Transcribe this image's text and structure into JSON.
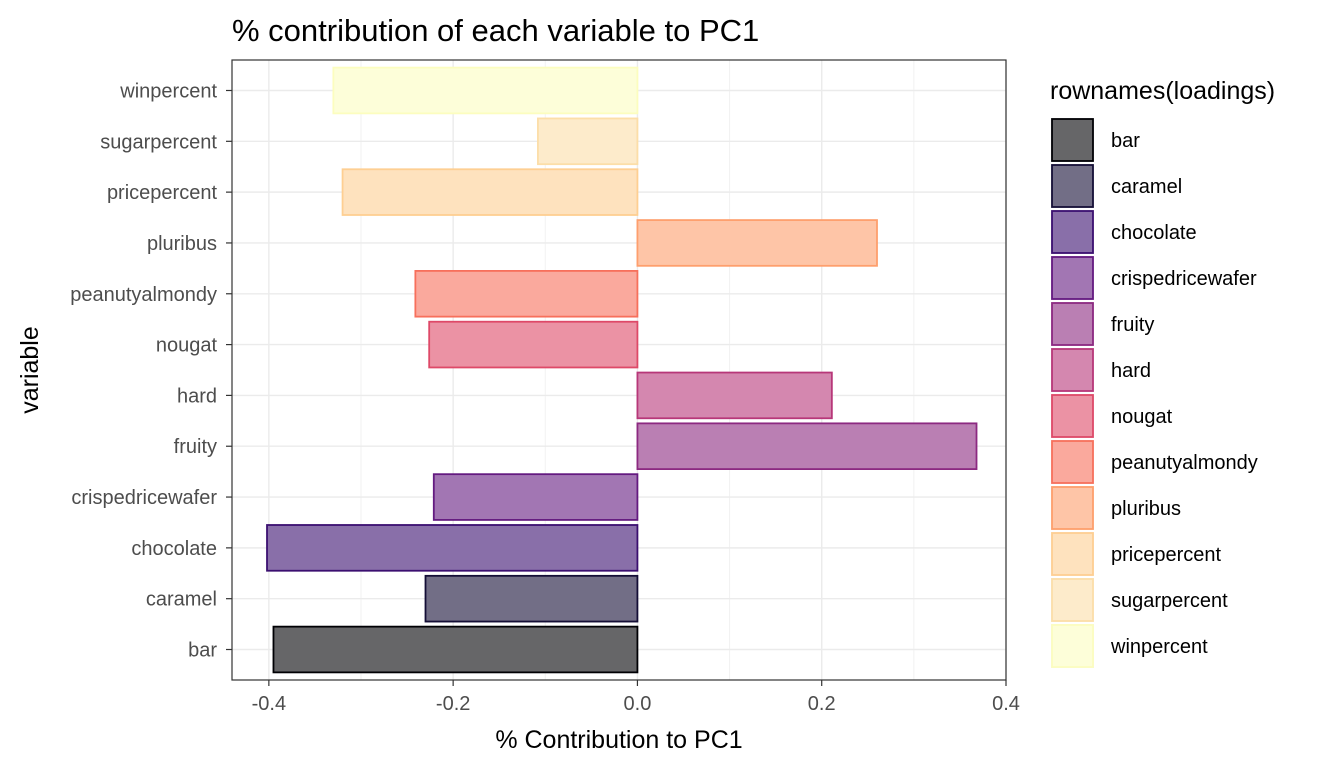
{
  "chart_data": {
    "type": "bar",
    "orientation": "horizontal",
    "title": "% contribution of each variable to PC1",
    "xlabel": "% Contribution to PC1",
    "ylabel": "variable",
    "xlim": [
      -0.44,
      0.4
    ],
    "xticks": [
      -0.4,
      -0.2,
      0.0,
      0.2,
      0.4
    ],
    "xtick_labels": [
      "-0.4",
      "-0.2",
      "0.0",
      "0.2",
      "0.4"
    ],
    "grid": true,
    "legend_position": "right",
    "legend_title": "rownames(loadings)",
    "categories": [
      "bar",
      "caramel",
      "chocolate",
      "crispedricewafer",
      "fruity",
      "hard",
      "nougat",
      "peanutyalmondy",
      "pluribus",
      "pricepercent",
      "sugarpercent",
      "winpercent"
    ],
    "values": [
      -0.395,
      -0.23,
      -0.402,
      -0.221,
      0.368,
      0.211,
      -0.226,
      -0.241,
      0.26,
      -0.32,
      -0.108,
      -0.33
    ],
    "fills": [
      "#000004",
      "#140E36",
      "#3B0F70",
      "#641A80",
      "#8C2981",
      "#B73779",
      "#DE4968",
      "#F7705C",
      "#FE9F6D",
      "#FECF92",
      "#FCDEA8",
      "#FCFDBF"
    ]
  }
}
